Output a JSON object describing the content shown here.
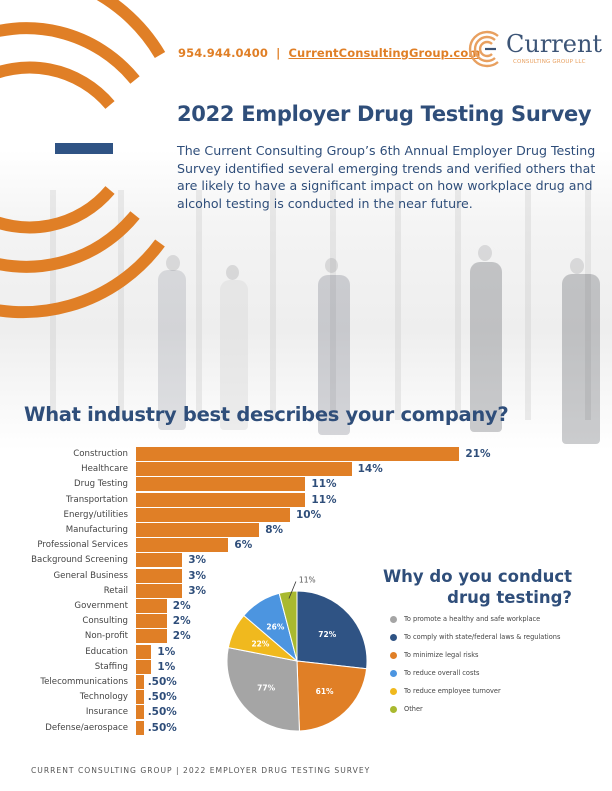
{
  "header": {
    "phone": "954.944.0400",
    "separator": "|",
    "website": "CurrentConsultingGroup.com",
    "logo": {
      "icon": "concentric-c-logo-icon",
      "wordmark": "Current",
      "subtitle": "CONSULTING GROUP LLC"
    }
  },
  "hero": {
    "title": "2022 Employer Drug Testing Survey",
    "intro": "The Current Consulting Group’s 6th Annual Employer Drug Testing Survey identified several emerging trends and verified others that are likely to have a significant impact on how workplace drug and alcohol testing is conducted in the near future."
  },
  "colors": {
    "brand_orange": "#e07f26",
    "brand_navy": "#2f4e7a",
    "pie_gray": "#a5a5a5",
    "pie_navy": "#2f5384",
    "pie_orange": "#e07f26",
    "pie_blue": "#4c95e0",
    "pie_yellow": "#f0b91e",
    "pie_green": "#a9b92f"
  },
  "chart_data": [
    {
      "type": "bar",
      "orientation": "horizontal",
      "title": "What industry best describes your company?",
      "xlabel": "",
      "ylabel": "",
      "grid": false,
      "categories": [
        "Construction",
        "Healthcare",
        "Drug Testing",
        "Transportation",
        "Energy/utilities",
        "Manufacturing",
        "Professional Services",
        "Background Screening",
        "General Business",
        "Retail",
        "Government",
        "Consulting",
        "Non-profit",
        "Education",
        "Staffing",
        "Telecommunications",
        "Technology",
        "Insurance",
        "Defense/aerospace"
      ],
      "values": [
        21,
        14,
        11,
        11,
        10,
        8,
        6,
        3,
        3,
        3,
        2,
        2,
        2,
        1,
        1,
        0.5,
        0.5,
        0.5,
        0.5
      ],
      "value_labels": [
        "21%",
        "14%",
        "11%",
        "11%",
        "10%",
        "8%",
        "6%",
        "3%",
        "3%",
        "3%",
        "2%",
        "2%",
        "2%",
        "1%",
        "1%",
        ".50%",
        ".50%",
        ".50%",
        ".50%"
      ],
      "unit": "%"
    },
    {
      "type": "pie",
      "title": "Why do you conduct drug testing?",
      "legend_position": "right",
      "labels": [
        "To promote a healthy and safe workplace",
        "To comply with state/federal laws & regulations",
        "To minimize legal risks",
        "To reduce overall costs",
        "To reduce employee turnover",
        "Other"
      ],
      "values": [
        77,
        72,
        61,
        26,
        22,
        11
      ],
      "value_labels": [
        "77%",
        "72%",
        "61%",
        "26%",
        "22%",
        "11%"
      ],
      "colors": [
        "#a5a5a5",
        "#2f5384",
        "#e07f26",
        "#4c95e0",
        "#f0b91e",
        "#a9b92f"
      ]
    }
  ],
  "bar_chart": {
    "title": "What industry best describes your company?",
    "rows": [
      {
        "label": "Construction",
        "value": 21,
        "text": "21%"
      },
      {
        "label": "Healthcare",
        "value": 14,
        "text": "14%"
      },
      {
        "label": "Drug Testing",
        "value": 11,
        "text": "11%"
      },
      {
        "label": "Transportation",
        "value": 11,
        "text": "11%"
      },
      {
        "label": "Energy/utilities",
        "value": 10,
        "text": "10%"
      },
      {
        "label": "Manufacturing",
        "value": 8,
        "text": "8%"
      },
      {
        "label": "Professional Services",
        "value": 6,
        "text": "6%"
      },
      {
        "label": "Background Screening",
        "value": 3,
        "text": "3%"
      },
      {
        "label": "General Business",
        "value": 3,
        "text": "3%"
      },
      {
        "label": "Retail",
        "value": 3,
        "text": "3%"
      },
      {
        "label": "Government",
        "value": 2,
        "text": "2%"
      },
      {
        "label": "Consulting",
        "value": 2,
        "text": "2%"
      },
      {
        "label": "Non-profit",
        "value": 2,
        "text": "2%"
      },
      {
        "label": "Education",
        "value": 1,
        "text": "1%"
      },
      {
        "label": "Staffing",
        "value": 1,
        "text": "1%"
      },
      {
        "label": "Telecommunications",
        "value": 0.5,
        "text": ".50%"
      },
      {
        "label": "Technology",
        "value": 0.5,
        "text": ".50%"
      },
      {
        "label": "Insurance",
        "value": 0.5,
        "text": ".50%"
      },
      {
        "label": "Defense/aerospace",
        "value": 0.5,
        "text": ".50%"
      }
    ]
  },
  "pie_chart": {
    "title_line1": "Why do you conduct",
    "title_line2": "drug testing?",
    "slices": [
      {
        "label": "To promote a healthy and safe workplace",
        "value": 77,
        "text": "77%",
        "color": "#a5a5a5"
      },
      {
        "label": "To comply with state/federal laws & regulations",
        "value": 72,
        "text": "72%",
        "color": "#2f5384"
      },
      {
        "label": "To minimize legal risks",
        "value": 61,
        "text": "61%",
        "color": "#e07f26"
      },
      {
        "label": "To reduce overall costs",
        "value": 26,
        "text": "26%",
        "color": "#4c95e0"
      },
      {
        "label": "To reduce employee turnover",
        "value": 22,
        "text": "22%",
        "color": "#f0b91e"
      },
      {
        "label": "Other",
        "value": 11,
        "text": "11%",
        "color": "#a9b92f"
      }
    ]
  },
  "footer": {
    "text": "CURRENT CONSULTING GROUP | 2022 EMPLOYER DRUG TESTING SURVEY"
  }
}
